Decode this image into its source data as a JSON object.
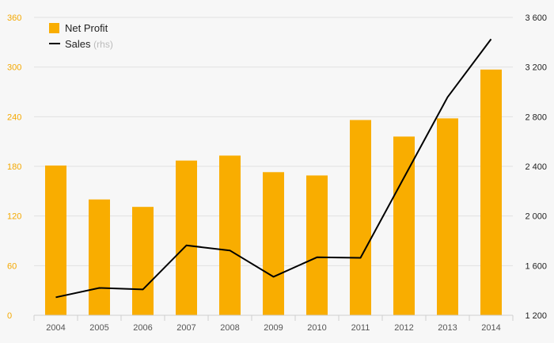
{
  "chart_data": {
    "type": "bar+line",
    "categories": [
      "2004",
      "2005",
      "2006",
      "2007",
      "2008",
      "2009",
      "2010",
      "2011",
      "2012",
      "2013",
      "2014"
    ],
    "series": [
      {
        "name": "Net Profit",
        "type": "bar",
        "axis": "left",
        "color": "#f9ad00",
        "values": [
          181,
          140,
          131,
          187,
          193,
          173,
          169,
          236,
          216,
          238,
          297
        ]
      },
      {
        "name": "Sales",
        "name_note": "(rhs)",
        "type": "line",
        "axis": "right",
        "color": "#000000",
        "values": [
          1345,
          1420,
          1408,
          1763,
          1722,
          1510,
          1667,
          1663,
          2310,
          2957,
          3425
        ]
      }
    ],
    "y_left": {
      "ylim": [
        0,
        360
      ],
      "ticks": [
        "0",
        "60",
        "120",
        "180",
        "240",
        "300",
        "360"
      ],
      "color": "#f4a800"
    },
    "y_right": {
      "ylim": [
        1200,
        3600
      ],
      "ticks": [
        "1 200",
        "1 600",
        "2 000",
        "2 400",
        "2 800",
        "3 200",
        "3 600"
      ],
      "color": "#222222"
    },
    "title": "",
    "xlabel": "",
    "ylabel": "",
    "grid": true,
    "legend_position": "top-left"
  }
}
